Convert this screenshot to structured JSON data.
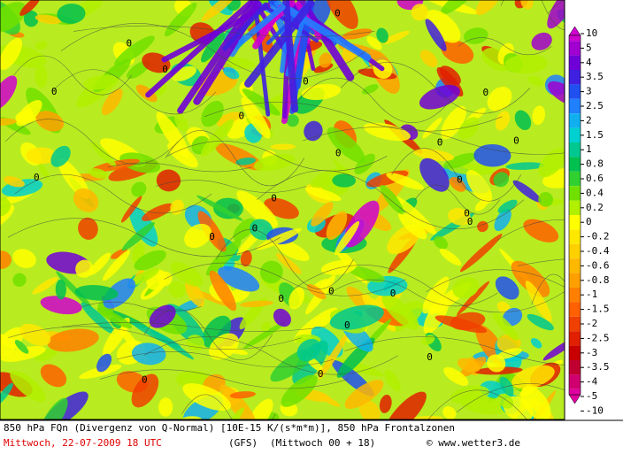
{
  "map": {
    "contour_labels": [
      "0",
      "0",
      "0",
      "0",
      "0",
      "0",
      "0",
      "0",
      "0",
      "0",
      "0",
      "0",
      "0",
      "0",
      "0",
      "0",
      "0",
      "0",
      "0",
      "0",
      "0",
      "0",
      "0",
      "0"
    ],
    "legend": {
      "levels": [
        10,
        5,
        4,
        3.5,
        3,
        2.5,
        2,
        1.5,
        1,
        0.8,
        0.6,
        0.4,
        0.2,
        0,
        -0.2,
        -0.4,
        -0.6,
        -0.8,
        -1,
        -1.5,
        -2,
        -2.5,
        -3,
        -3.5,
        -4,
        -5,
        -10
      ],
      "colors": [
        "#d000d0",
        "#a000d0",
        "#7000d8",
        "#4020e0",
        "#2050f0",
        "#2080ff",
        "#10b0f0",
        "#00d0d0",
        "#00c890",
        "#00c050",
        "#30d030",
        "#70e000",
        "#b0f000",
        "#ffff00",
        "#ffe800",
        "#ffd000",
        "#ffb800",
        "#ffa000",
        "#ff8000",
        "#ff6000",
        "#f04000",
        "#e02000",
        "#c80000",
        "#c00030",
        "#d00070",
        "#e000a0"
      ]
    },
    "footer": {
      "title": "850 hPa FQn (Divergenz von Q-Normal) [10E-15 K/(s*m*m)], 850 hPa Frontalzonen",
      "date": "Mittwoch, 22-07-2009  18 UTC",
      "model": "(GFS)",
      "run": "(Mittwoch 00 + 18)",
      "credit": "© www.wetter3.de"
    }
  }
}
